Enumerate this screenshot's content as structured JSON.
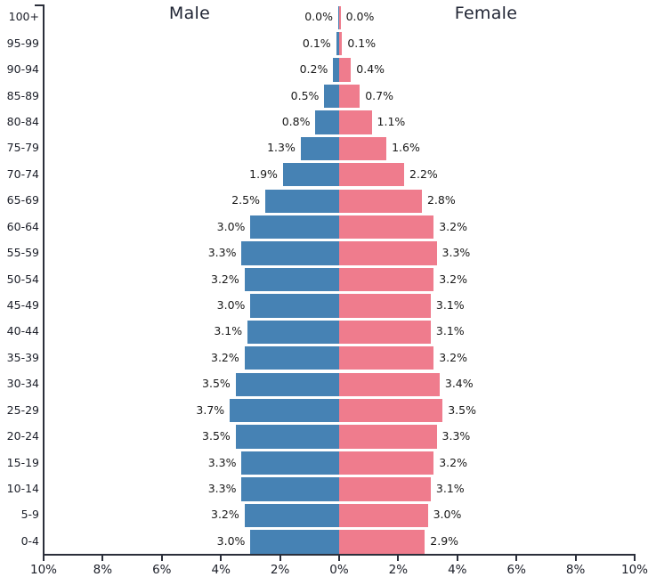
{
  "chart_data": {
    "type": "bar",
    "variant": "population-pyramid",
    "title_left": "Male",
    "title_right": "Female",
    "legend_position": "none",
    "grid": false,
    "age_groups_top_to_bottom": [
      "100+",
      "95-99",
      "90-94",
      "85-89",
      "80-84",
      "75-79",
      "70-74",
      "65-69",
      "60-64",
      "55-59",
      "50-54",
      "45-49",
      "40-44",
      "35-39",
      "30-34",
      "25-29",
      "20-24",
      "15-19",
      "10-14",
      "5-9",
      "0-4"
    ],
    "series": [
      {
        "name": "Male",
        "side": "left",
        "color": "#4682B4",
        "values_percent": [
          0.0,
          0.1,
          0.2,
          0.5,
          0.8,
          1.3,
          1.9,
          2.5,
          3.0,
          3.3,
          3.2,
          3.0,
          3.1,
          3.2,
          3.5,
          3.7,
          3.5,
          3.3,
          3.3,
          3.2,
          3.0
        ],
        "labels": [
          "0.0%",
          "0.1%",
          "0.2%",
          "0.5%",
          "0.8%",
          "1.3%",
          "1.9%",
          "2.5%",
          "3.0%",
          "3.3%",
          "3.2%",
          "3.0%",
          "3.1%",
          "3.2%",
          "3.5%",
          "3.7%",
          "3.5%",
          "3.3%",
          "3.3%",
          "3.2%",
          "3.0%"
        ]
      },
      {
        "name": "Female",
        "side": "right",
        "color": "#EF7C8D",
        "values_percent": [
          0.0,
          0.1,
          0.4,
          0.7,
          1.1,
          1.6,
          2.2,
          2.8,
          3.2,
          3.3,
          3.2,
          3.1,
          3.1,
          3.2,
          3.4,
          3.5,
          3.3,
          3.2,
          3.1,
          3.0,
          2.9
        ],
        "labels": [
          "0.0%",
          "0.1%",
          "0.4%",
          "0.7%",
          "1.1%",
          "1.6%",
          "2.2%",
          "2.8%",
          "3.2%",
          "3.3%",
          "3.2%",
          "3.1%",
          "3.1%",
          "3.2%",
          "3.4%",
          "3.5%",
          "3.3%",
          "3.2%",
          "3.1%",
          "3.0%",
          "2.9%"
        ]
      }
    ],
    "x_axis": {
      "tick_labels": [
        "10%",
        "8%",
        "6%",
        "4%",
        "2%",
        "0%",
        "2%",
        "4%",
        "6%",
        "8%",
        "10%"
      ],
      "range_percent": [
        -10,
        10
      ]
    },
    "colors": {
      "male_bar": "#4682B4",
      "female_bar": "#EF7C8D",
      "axis": "#2b2f3b",
      "text": "#1b1e28"
    }
  }
}
